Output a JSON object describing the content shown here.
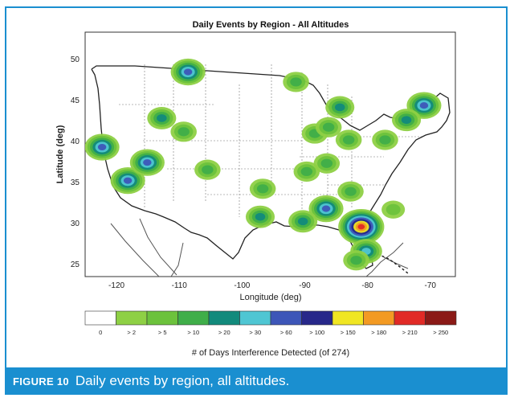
{
  "figure": {
    "label": "FIGURE 10",
    "caption": "Daily events by region, all altitudes."
  },
  "colorbar": {
    "title": "# of Days Interference Detected (of 274)",
    "bins": [
      {
        "label": "0",
        "color": "#ffffff"
      },
      {
        "label": "> 2",
        "color": "#8ed044"
      },
      {
        "label": "> 5",
        "color": "#6cc23c"
      },
      {
        "label": "> 10",
        "color": "#3fae49"
      },
      {
        "label": "> 20",
        "color": "#128a7c"
      },
      {
        "label": "> 30",
        "color": "#4fc6d3"
      },
      {
        "label": "> 60",
        "color": "#3d56b8"
      },
      {
        "label": "> 100",
        "color": "#27288a"
      },
      {
        "label": "> 150",
        "color": "#f0e623"
      },
      {
        "label": "> 180",
        "color": "#f39a23"
      },
      {
        "label": "> 210",
        "color": "#e12a26"
      },
      {
        "label": "> 250",
        "color": "#8b1a17"
      }
    ]
  },
  "chart_data": {
    "type": "heatmap",
    "title": "Daily Events by Region - All Altitudes",
    "xlabel": "Longitude (deg)",
    "ylabel": "Latitude (deg)",
    "xlim": [
      -125,
      -66
    ],
    "ylim": [
      23.5,
      50.5
    ],
    "xticks": [
      -120,
      -110,
      -100,
      -90,
      -80,
      -70
    ],
    "yticks": [
      25,
      30,
      35,
      40,
      45,
      50
    ],
    "hotspots": [
      {
        "lon": -122.3,
        "lat": 37.8,
        "level": 6
      },
      {
        "lon": -118.2,
        "lat": 34.1,
        "level": 6
      },
      {
        "lon": -115.1,
        "lat": 36.1,
        "level": 6
      },
      {
        "lon": -108.6,
        "lat": 46.1,
        "level": 6
      },
      {
        "lon": -112.8,
        "lat": 41.0,
        "level": 4
      },
      {
        "lon": -81.0,
        "lat": 29.0,
        "level": 10
      },
      {
        "lon": -80.2,
        "lat": 26.3,
        "level": 5
      },
      {
        "lon": -81.8,
        "lat": 25.3,
        "level": 3
      },
      {
        "lon": -86.6,
        "lat": 31.0,
        "level": 6
      },
      {
        "lon": -71.0,
        "lat": 42.4,
        "level": 6
      },
      {
        "lon": -73.8,
        "lat": 40.8,
        "level": 4
      },
      {
        "lon": -97.1,
        "lat": 30.1,
        "level": 4
      },
      {
        "lon": -90.3,
        "lat": 29.6,
        "level": 4
      },
      {
        "lon": -84.4,
        "lat": 42.2,
        "level": 4
      },
      {
        "lon": -88.4,
        "lat": 39.3,
        "level": 3
      },
      {
        "lon": -96.7,
        "lat": 33.2,
        "level": 3
      },
      {
        "lon": -89.7,
        "lat": 35.1,
        "level": 3
      },
      {
        "lon": -86.5,
        "lat": 36.0,
        "level": 3
      },
      {
        "lon": -82.7,
        "lat": 32.9,
        "level": 3
      },
      {
        "lon": -83.0,
        "lat": 38.6,
        "level": 3
      },
      {
        "lon": -77.2,
        "lat": 38.6,
        "level": 3
      },
      {
        "lon": -109.3,
        "lat": 39.5,
        "level": 3
      },
      {
        "lon": -105.5,
        "lat": 35.3,
        "level": 3
      },
      {
        "lon": -91.4,
        "lat": 45.0,
        "level": 3
      },
      {
        "lon": -86.2,
        "lat": 40.0,
        "level": 3
      },
      {
        "lon": -75.9,
        "lat": 30.9,
        "level": 2
      }
    ]
  }
}
